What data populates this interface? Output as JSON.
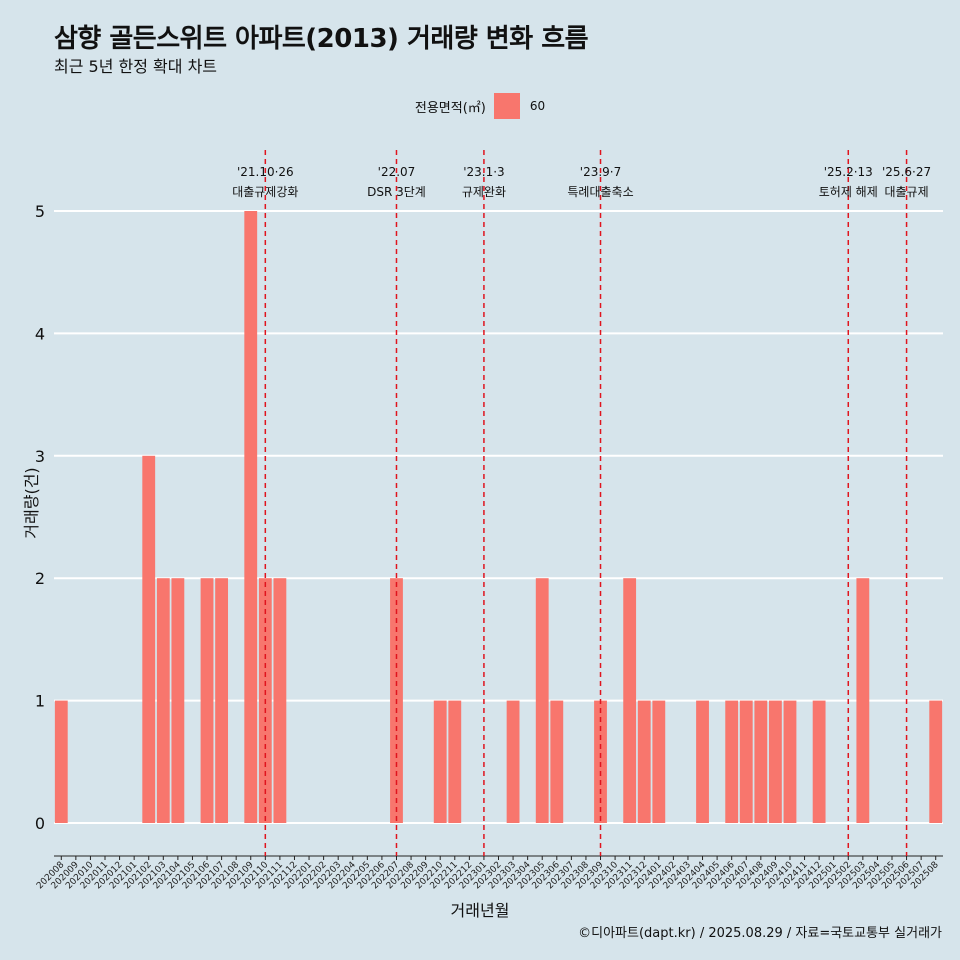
{
  "title": "삼향 골든스위트 아파트(2013) 거래량 변화 흐름",
  "subtitle": "최근 5년 한정 확대 차트",
  "legend": {
    "title": "전용면적(㎡)",
    "label": "60",
    "color": "#f8766d"
  },
  "caption": "©디아파트(dapt.kr) / 2025.08.29 / 자료=국토교통부 실거래가",
  "chart_data": {
    "type": "bar",
    "xlabel": "거래년월",
    "ylabel": "거래량(건)",
    "ylim": [
      0,
      5
    ],
    "yticks": [
      0,
      1,
      2,
      3,
      4,
      5
    ],
    "grid": true,
    "legend_position": "top",
    "categories": [
      "202008",
      "202009",
      "202010",
      "202011",
      "202012",
      "202101",
      "202102",
      "202103",
      "202104",
      "202105",
      "202106",
      "202107",
      "202108",
      "202109",
      "202110",
      "202111",
      "202112",
      "202201",
      "202202",
      "202203",
      "202204",
      "202205",
      "202206",
      "202207",
      "202208",
      "202209",
      "202210",
      "202211",
      "202212",
      "202301",
      "202302",
      "202303",
      "202304",
      "202305",
      "202306",
      "202307",
      "202308",
      "202309",
      "202310",
      "202311",
      "202312",
      "202401",
      "202402",
      "202403",
      "202404",
      "202405",
      "202406",
      "202407",
      "202408",
      "202409",
      "202410",
      "202411",
      "202412",
      "202501",
      "202502",
      "202503",
      "202504",
      "202505",
      "202506",
      "202507",
      "202508"
    ],
    "series": [
      {
        "name": "60",
        "color": "#f8766d",
        "values": [
          1,
          0,
          0,
          0,
          0,
          0,
          3,
          2,
          2,
          0,
          2,
          2,
          0,
          5,
          2,
          2,
          0,
          0,
          0,
          0,
          0,
          0,
          0,
          2,
          0,
          0,
          1,
          1,
          0,
          0,
          0,
          1,
          0,
          2,
          1,
          0,
          0,
          1,
          0,
          2,
          1,
          1,
          0,
          0,
          1,
          0,
          1,
          1,
          1,
          1,
          1,
          0,
          1,
          0,
          0,
          2,
          0,
          0,
          0,
          0,
          1
        ]
      }
    ],
    "annotations": [
      {
        "line1": "'21.10·26",
        "line2": "대출규제강화",
        "x": "202110"
      },
      {
        "line1": "'22.07",
        "line2": "DSR 3단계",
        "x": "202207"
      },
      {
        "line1": "'23.1·3",
        "line2": "규제완화",
        "x": "202301"
      },
      {
        "line1": "'23.9·7",
        "line2": "특례대출축소",
        "x": "202309"
      },
      {
        "line1": "'25.2·13",
        "line2": "토허제 해제",
        "x": "202502"
      },
      {
        "line1": "'25.6·27",
        "line2": "대출규제",
        "x": "202506"
      }
    ]
  }
}
